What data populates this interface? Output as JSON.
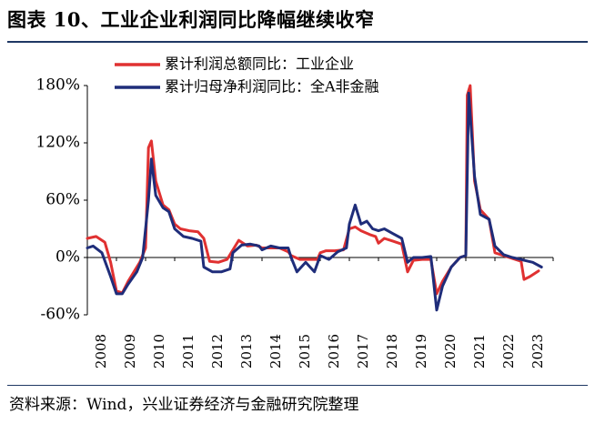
{
  "title": "图表 10、工业企业利润同比降幅继续收窄",
  "source": "资料来源：Wind，兴业证券经济与金融研究院整理",
  "chart_data": {
    "type": "line",
    "ylim": [
      -60,
      180
    ],
    "yticks": [
      -60,
      0,
      60,
      120,
      180
    ],
    "ytick_labels": [
      "-60%",
      "0%",
      "60%",
      "120%",
      "180%"
    ],
    "xlim": [
      2008,
      2024
    ],
    "xtick_labels": [
      "2008",
      "2009",
      "2010",
      "2011",
      "2012",
      "2013",
      "2014",
      "2015",
      "2016",
      "2017",
      "2018",
      "2019",
      "2020",
      "2021",
      "2022",
      "2023"
    ],
    "grid": false,
    "legend_position": "top",
    "series": [
      {
        "name": "累计利润总额同比：工业企业",
        "color": "#e03131",
        "points": [
          [
            2008.0,
            20
          ],
          [
            2008.3,
            22
          ],
          [
            2008.6,
            16
          ],
          [
            2008.8,
            -5
          ],
          [
            2009.0,
            -35
          ],
          [
            2009.2,
            -37
          ],
          [
            2009.4,
            -25
          ],
          [
            2009.6,
            -15
          ],
          [
            2009.8,
            -5
          ],
          [
            2010.0,
            10
          ],
          [
            2010.1,
            115
          ],
          [
            2010.2,
            122
          ],
          [
            2010.35,
            80
          ],
          [
            2010.6,
            55
          ],
          [
            2010.8,
            50
          ],
          [
            2011.0,
            35
          ],
          [
            2011.2,
            30
          ],
          [
            2011.5,
            28
          ],
          [
            2011.8,
            27
          ],
          [
            2012.0,
            20
          ],
          [
            2012.2,
            -4
          ],
          [
            2012.5,
            -5
          ],
          [
            2012.8,
            -2
          ],
          [
            2013.0,
            8
          ],
          [
            2013.2,
            18
          ],
          [
            2013.5,
            12
          ],
          [
            2013.8,
            13
          ],
          [
            2014.0,
            10
          ],
          [
            2014.3,
            10
          ],
          [
            2014.6,
            10
          ],
          [
            2014.9,
            6
          ],
          [
            2015.0,
            2
          ],
          [
            2015.3,
            -2
          ],
          [
            2015.6,
            -2
          ],
          [
            2015.9,
            -2
          ],
          [
            2016.0,
            5
          ],
          [
            2016.2,
            7
          ],
          [
            2016.5,
            7
          ],
          [
            2016.8,
            8
          ],
          [
            2017.0,
            30
          ],
          [
            2017.2,
            32
          ],
          [
            2017.4,
            28
          ],
          [
            2017.7,
            24
          ],
          [
            2017.9,
            22
          ],
          [
            2018.0,
            15
          ],
          [
            2018.2,
            20
          ],
          [
            2018.5,
            17
          ],
          [
            2018.8,
            14
          ],
          [
            2019.0,
            -15
          ],
          [
            2019.2,
            -3
          ],
          [
            2019.5,
            -2
          ],
          [
            2019.8,
            -2
          ],
          [
            2020.0,
            -38
          ],
          [
            2020.2,
            -25
          ],
          [
            2020.5,
            -10
          ],
          [
            2020.8,
            0
          ],
          [
            2021.0,
            2
          ],
          [
            2021.05,
            170
          ],
          [
            2021.15,
            180
          ],
          [
            2021.3,
            80
          ],
          [
            2021.5,
            50
          ],
          [
            2021.8,
            40
          ],
          [
            2022.0,
            5
          ],
          [
            2022.3,
            2
          ],
          [
            2022.6,
            -1
          ],
          [
            2022.9,
            -4
          ],
          [
            2023.0,
            -23
          ],
          [
            2023.2,
            -20
          ],
          [
            2023.5,
            -14
          ]
        ]
      },
      {
        "name": "累计归母净利润同比：全A非金融",
        "color": "#1f2d7a",
        "points": [
          [
            2008.0,
            10
          ],
          [
            2008.2,
            12
          ],
          [
            2008.5,
            5
          ],
          [
            2008.8,
            -20
          ],
          [
            2009.0,
            -38
          ],
          [
            2009.2,
            -38
          ],
          [
            2009.4,
            -28
          ],
          [
            2009.7,
            -15
          ],
          [
            2009.9,
            0
          ],
          [
            2010.1,
            60
          ],
          [
            2010.2,
            103
          ],
          [
            2010.35,
            65
          ],
          [
            2010.6,
            52
          ],
          [
            2010.8,
            48
          ],
          [
            2011.0,
            30
          ],
          [
            2011.3,
            22
          ],
          [
            2011.6,
            20
          ],
          [
            2011.9,
            17
          ],
          [
            2012.0,
            -10
          ],
          [
            2012.3,
            -15
          ],
          [
            2012.6,
            -15
          ],
          [
            2012.9,
            -12
          ],
          [
            2013.0,
            5
          ],
          [
            2013.3,
            13
          ],
          [
            2013.6,
            14
          ],
          [
            2013.9,
            12
          ],
          [
            2014.0,
            8
          ],
          [
            2014.3,
            12
          ],
          [
            2014.6,
            10
          ],
          [
            2014.9,
            10
          ],
          [
            2015.0,
            0
          ],
          [
            2015.2,
            -15
          ],
          [
            2015.5,
            -5
          ],
          [
            2015.8,
            -15
          ],
          [
            2016.0,
            2
          ],
          [
            2016.3,
            -2
          ],
          [
            2016.6,
            6
          ],
          [
            2016.9,
            10
          ],
          [
            2017.0,
            35
          ],
          [
            2017.2,
            55
          ],
          [
            2017.4,
            35
          ],
          [
            2017.6,
            38
          ],
          [
            2017.8,
            30
          ],
          [
            2018.0,
            28
          ],
          [
            2018.2,
            30
          ],
          [
            2018.5,
            25
          ],
          [
            2018.8,
            20
          ],
          [
            2019.0,
            -5
          ],
          [
            2019.2,
            0
          ],
          [
            2019.5,
            0
          ],
          [
            2019.8,
            1
          ],
          [
            2020.0,
            -55
          ],
          [
            2020.2,
            -30
          ],
          [
            2020.5,
            -10
          ],
          [
            2020.8,
            0
          ],
          [
            2021.0,
            2
          ],
          [
            2021.1,
            172
          ],
          [
            2021.3,
            85
          ],
          [
            2021.5,
            45
          ],
          [
            2021.8,
            40
          ],
          [
            2022.0,
            12
          ],
          [
            2022.3,
            3
          ],
          [
            2022.6,
            0
          ],
          [
            2022.9,
            -2
          ],
          [
            2023.0,
            -3
          ],
          [
            2023.3,
            -5
          ],
          [
            2023.6,
            -10
          ]
        ]
      }
    ]
  }
}
